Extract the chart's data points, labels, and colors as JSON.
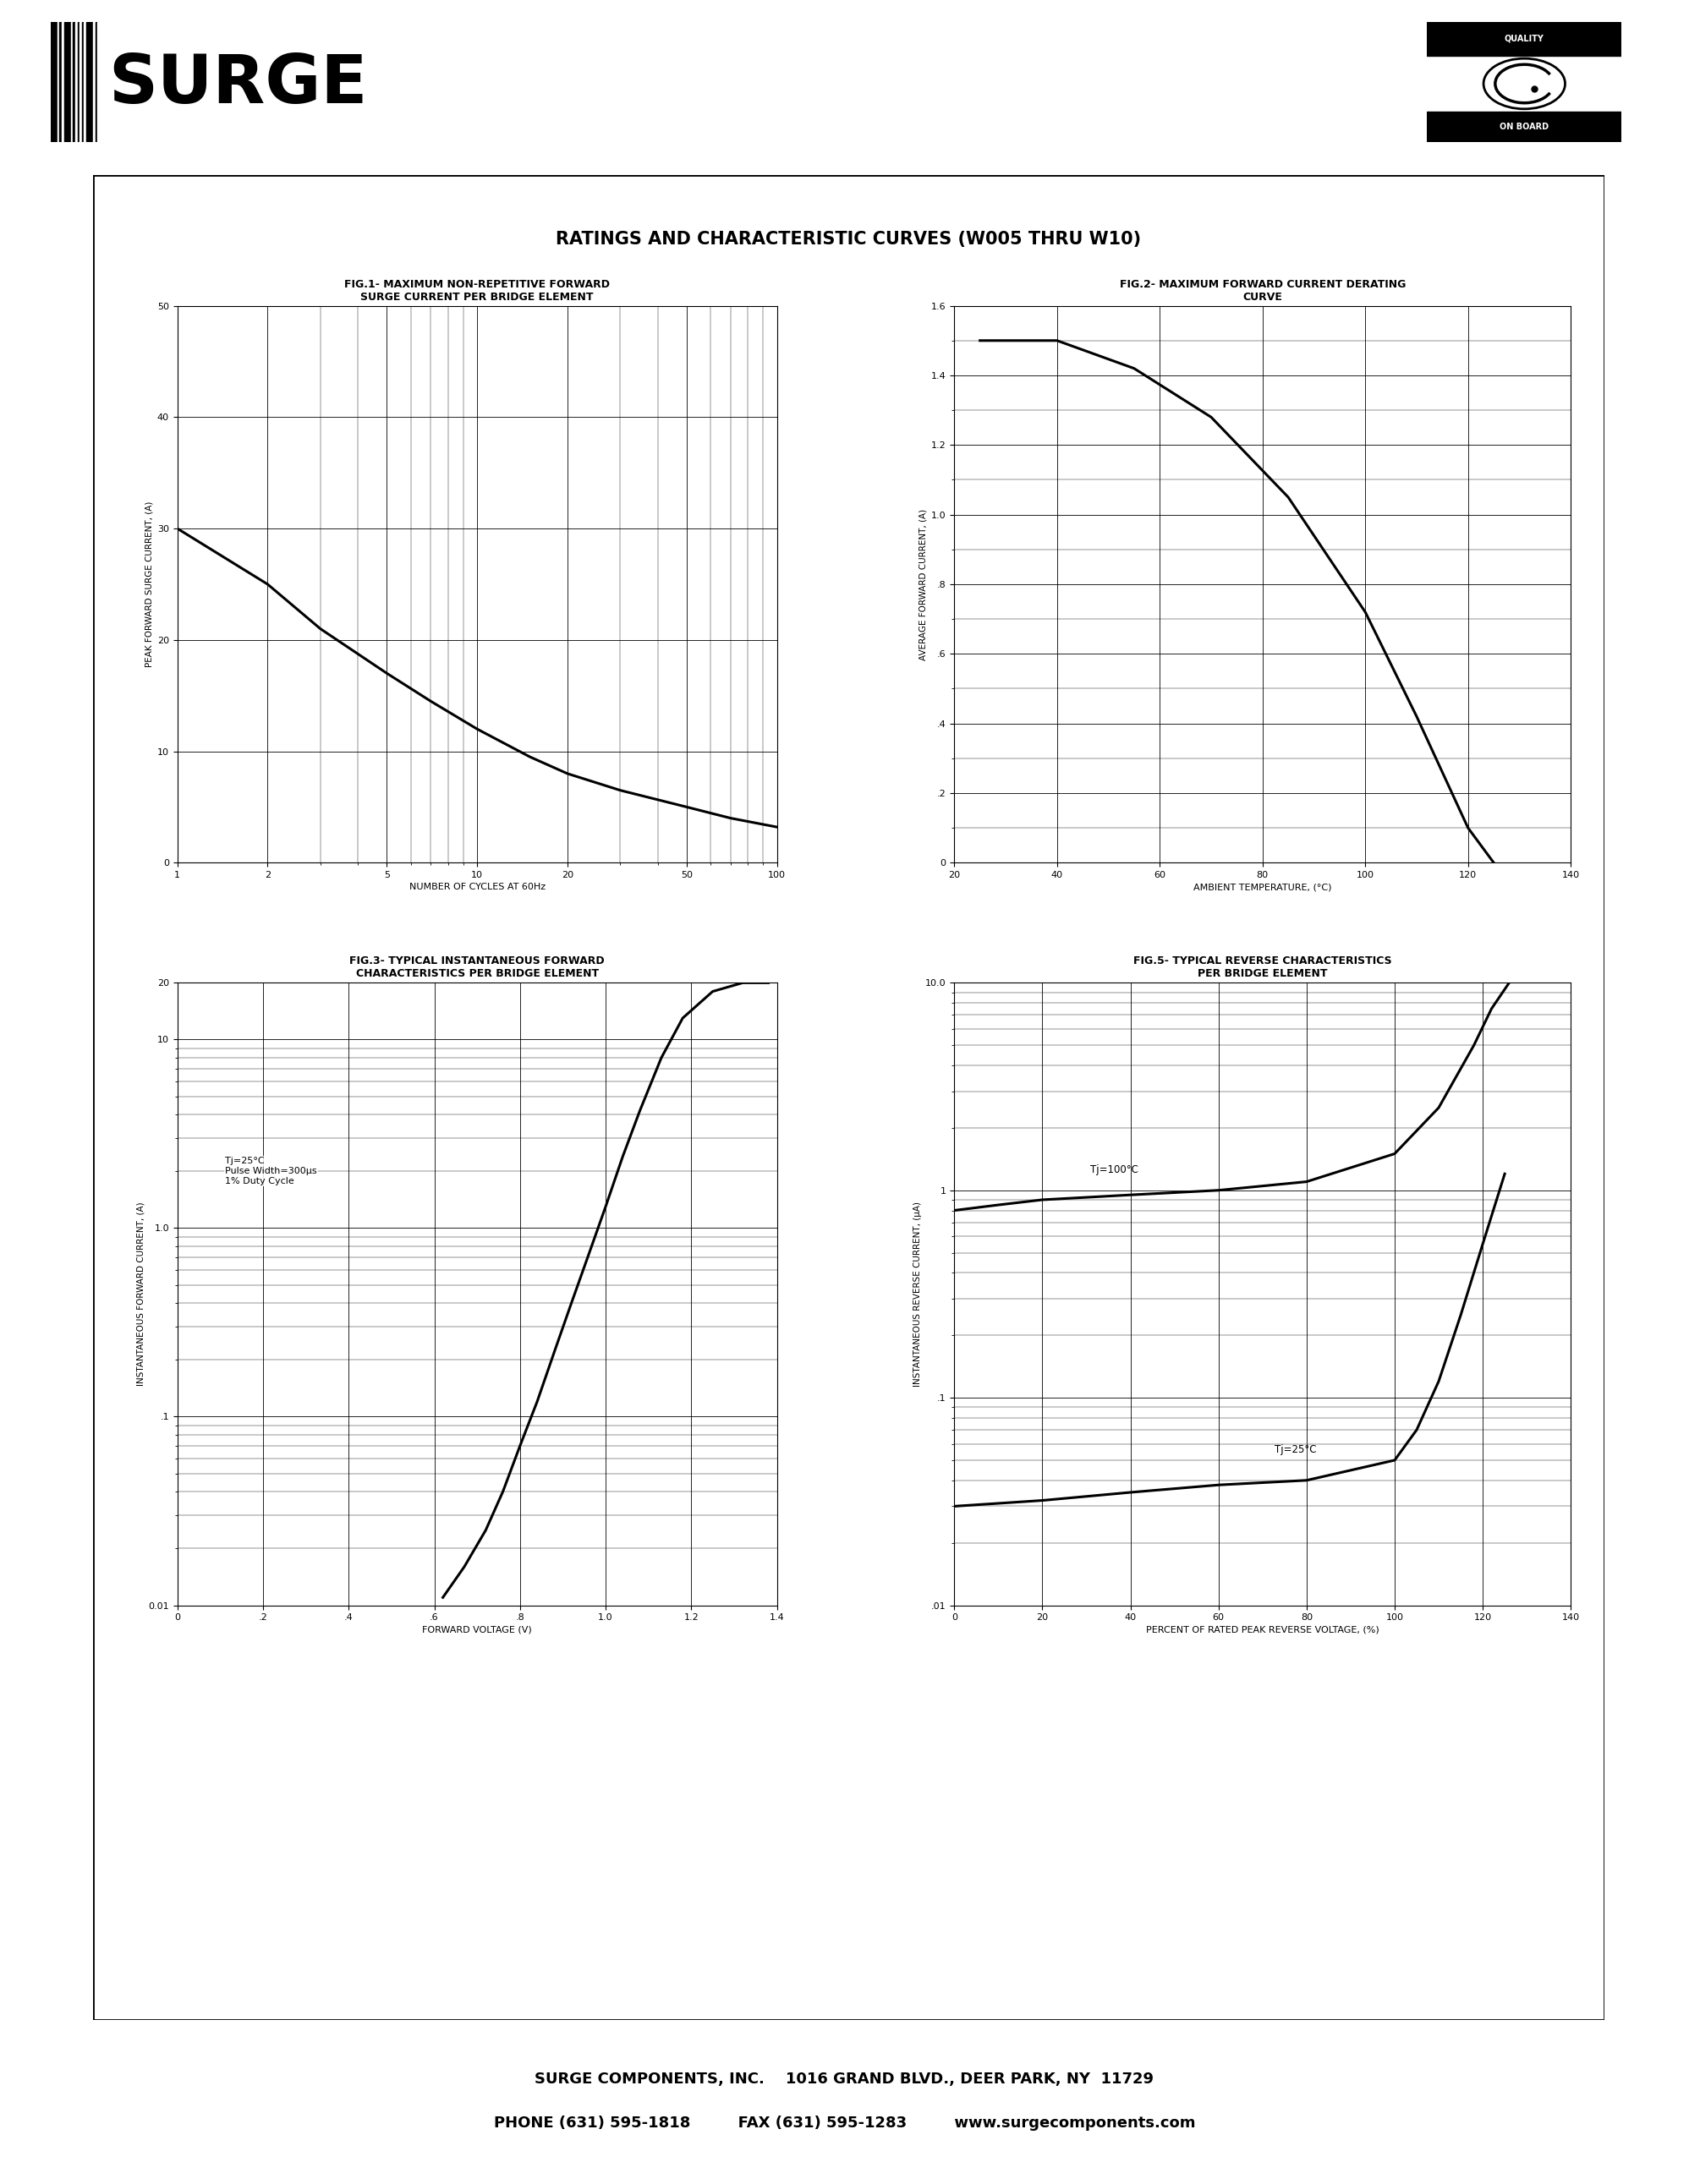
{
  "page_bg": "#ffffff",
  "main_title": "RATINGS AND CHARACTERISTIC CURVES (W005 THRU W10)",
  "fig1_title_line1": "FIG.1- MAXIMUM NON-REPETITIVE FORWARD",
  "fig1_title_line2": "SURGE CURRENT PER BRIDGE ELEMENT",
  "fig1_ylabel": "PEAK FORWARD SURGE CURRENT, (A)",
  "fig1_xlabel": "NUMBER OF CYCLES AT 60Hz",
  "fig1_yticks": [
    0,
    10,
    20,
    30,
    40,
    50
  ],
  "fig1_xticks_labels": [
    "1",
    "2",
    "5",
    "10",
    "20",
    "50",
    "100"
  ],
  "fig1_xticks_vals": [
    1,
    2,
    5,
    10,
    20,
    50,
    100
  ],
  "fig1_x": [
    1,
    2,
    3,
    5,
    7,
    10,
    15,
    20,
    30,
    50,
    70,
    100
  ],
  "fig1_y": [
    30,
    25,
    21,
    17,
    14.5,
    12,
    9.5,
    8.0,
    6.5,
    5.0,
    4.0,
    3.2
  ],
  "fig2_title_line1": "FIG.2- MAXIMUM FORWARD CURRENT DERATING",
  "fig2_title_line2": "CURVE",
  "fig2_ylabel": "AVERAGE FORWARD CURRENT, (A)",
  "fig2_xlabel": "AMBIENT TEMPERATURE, (°C)",
  "fig2_yticks": [
    0,
    0.2,
    0.4,
    0.6,
    0.8,
    1.0,
    1.2,
    1.4,
    1.6
  ],
  "fig2_ytick_labels": [
    "0",
    ".2",
    ".4",
    ".6",
    ".8",
    "1.0",
    "1.2",
    "1.4",
    "1.6"
  ],
  "fig2_xticks": [
    20,
    40,
    60,
    80,
    100,
    120,
    140
  ],
  "fig2_x": [
    25,
    40,
    55,
    70,
    85,
    100,
    110,
    120,
    125
  ],
  "fig2_y": [
    1.5,
    1.5,
    1.42,
    1.28,
    1.05,
    0.72,
    0.42,
    0.1,
    0.0
  ],
  "fig3_title_line1": "FIG.3- TYPICAL INSTANTANEOUS FORWARD",
  "fig3_title_line2": "CHARACTERISTICS PER BRIDGE ELEMENT",
  "fig3_ylabel": "INSTANTANEOUS FORWARD CURRENT, (A)",
  "fig3_xlabel": "FORWARD VOLTAGE (V)",
  "fig3_annotation": "Tj=25°C\nPulse Width=300μs\n1% Duty Cycle",
  "fig3_xticks": [
    0,
    0.2,
    0.4,
    0.6,
    0.8,
    1.0,
    1.2,
    1.4
  ],
  "fig3_xtick_labels": [
    "0",
    ".2",
    ".4",
    ".6",
    ".8",
    "1.0",
    "1.2",
    "1.4"
  ],
  "fig3_x": [
    0.62,
    0.67,
    0.72,
    0.76,
    0.8,
    0.84,
    0.88,
    0.92,
    0.96,
    1.0,
    1.04,
    1.08,
    1.13,
    1.18,
    1.25,
    1.32,
    1.38
  ],
  "fig3_y": [
    0.011,
    0.016,
    0.025,
    0.04,
    0.07,
    0.12,
    0.22,
    0.4,
    0.72,
    1.3,
    2.4,
    4.2,
    8.0,
    13.0,
    18.0,
    20.0,
    20.0
  ],
  "fig5_title_line1": "FIG.5- TYPICAL REVERSE CHARACTERISTICS",
  "fig5_title_line2": "PER BRIDGE ELEMENT",
  "fig5_ylabel": "INSTANTANEOUS REVERSE CURRENT, (μA)",
  "fig5_xlabel": "PERCENT OF RATED PEAK REVERSE VOLTAGE, (%)",
  "fig5_xticks": [
    0,
    20,
    40,
    60,
    80,
    100,
    120,
    140
  ],
  "fig5_ytick_labels": [
    ".01",
    ".1",
    "1",
    "10.0"
  ],
  "fig5_label_100": "Tj=100°C",
  "fig5_label_25": "Tj=25°C",
  "fig5_x_100": [
    0,
    10,
    20,
    40,
    60,
    80,
    100,
    110,
    118,
    122,
    126
  ],
  "fig5_y_100": [
    0.8,
    0.85,
    0.9,
    0.95,
    1.0,
    1.1,
    1.5,
    2.5,
    5.0,
    7.5,
    10.0
  ],
  "fig5_x_25": [
    0,
    20,
    40,
    60,
    80,
    100,
    105,
    110,
    115,
    120,
    125
  ],
  "fig5_y_25": [
    0.03,
    0.032,
    0.035,
    0.038,
    0.04,
    0.05,
    0.07,
    0.12,
    0.25,
    0.55,
    1.2
  ],
  "company_name": "SURGE COMPONENTS, INC.",
  "company_address": "1016 GRAND BLVD., DEER PARK, NY  11729",
  "company_phone": "PHONE (631) 595-1818",
  "company_fax": "FAX (631) 595-1283",
  "company_web": "www.surgecomponents.com"
}
